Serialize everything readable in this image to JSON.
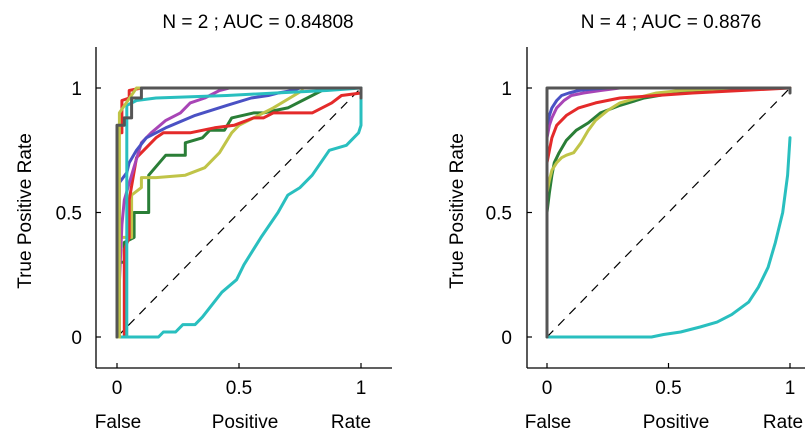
{
  "chart_data": [
    {
      "type": "line",
      "title": "N = 2 ; AUC = 0.84808",
      "xlabel_words": [
        "False",
        "Positive",
        "Rate"
      ],
      "ylabel": "True Positive Rate",
      "xlim": [
        0,
        1
      ],
      "ylim": [
        0,
        1
      ],
      "xticks": [
        "0",
        "0.5",
        "1"
      ],
      "yticks": [
        "0",
        "0.5",
        "1"
      ],
      "grid": false,
      "diagonal_reference": true,
      "series": [
        {
          "color": "#29bfbf",
          "x": [
            0,
            0.17,
            0.19,
            0.24,
            0.27,
            0.32,
            0.35,
            0.43,
            0.49,
            0.52,
            0.59,
            0.66,
            0.7,
            0.75,
            0.8,
            0.87,
            0.94,
            0.97,
            0.99,
            1,
            1
          ],
          "y": [
            0,
            0,
            0.02,
            0.02,
            0.05,
            0.05,
            0.08,
            0.18,
            0.23,
            0.29,
            0.4,
            0.5,
            0.57,
            0.6,
            0.65,
            0.75,
            0.77,
            0.8,
            0.82,
            0.85,
            1
          ]
        },
        {
          "color": "#2a7e37",
          "x": [
            0,
            0.01,
            0.01,
            0.03,
            0.03,
            0.07,
            0.07,
            0.13,
            0.13,
            0.2,
            0.28,
            0.28,
            0.35,
            0.38,
            0.44,
            0.47,
            0.56,
            0.6,
            0.7,
            0.8,
            0.86,
            1
          ],
          "y": [
            0,
            0,
            0.3,
            0.3,
            0.38,
            0.4,
            0.5,
            0.5,
            0.65,
            0.73,
            0.73,
            0.78,
            0.8,
            0.83,
            0.83,
            0.88,
            0.9,
            0.9,
            0.92,
            0.97,
            1,
            1
          ]
        },
        {
          "color": "#c0c448",
          "x": [
            0,
            0.01,
            0.01,
            0.06,
            0.06,
            0.1,
            0.1,
            0.16,
            0.28,
            0.36,
            0.42,
            0.47,
            0.5,
            0.58,
            0.64,
            0.76
          ],
          "y": [
            0,
            0,
            0.4,
            0.4,
            0.57,
            0.6,
            0.64,
            0.64,
            0.65,
            0.68,
            0.74,
            0.82,
            0.85,
            0.89,
            0.92,
            0.99
          ]
        },
        {
          "color": "#e42a2a",
          "x": [
            0,
            0.03,
            0.03,
            0.05,
            0.05,
            0.08,
            0.16,
            0.19,
            0.3,
            0.4,
            0.48,
            0.56,
            0.6,
            0.64,
            0.8,
            0.88,
            0.92,
            1
          ],
          "y": [
            0,
            0,
            0.35,
            0.4,
            0.55,
            0.72,
            0.8,
            0.82,
            0.82,
            0.84,
            0.85,
            0.88,
            0.88,
            0.9,
            0.9,
            0.94,
            0.97,
            0.98
          ]
        },
        {
          "color": "#a845b6",
          "x": [
            0,
            0.02,
            0.03,
            0.06,
            0.1,
            0.14,
            0.2,
            0.26,
            0.3,
            0.36,
            0.4,
            0.42,
            0.46
          ],
          "y": [
            0,
            0.45,
            0.55,
            0.65,
            0.78,
            0.82,
            0.87,
            0.9,
            0.94,
            0.96,
            0.98,
            0.99,
            1
          ]
        },
        {
          "color": "#4a51c4",
          "x": [
            0,
            0.01,
            0.01,
            0.04,
            0.05,
            0.08,
            0.12,
            0.2,
            0.32,
            0.45,
            0.55,
            0.62,
            0.66,
            0.72,
            0.75
          ],
          "y": [
            0,
            0,
            0.62,
            0.66,
            0.7,
            0.75,
            0.8,
            0.84,
            0.89,
            0.93,
            0.96,
            0.97,
            0.98,
            0.99,
            1
          ]
        },
        {
          "color": "#e42a2a",
          "x": [
            0,
            0,
            0.02,
            0.02,
            0.05,
            0.05,
            0.1,
            0.14,
            0.4,
            1
          ],
          "y": [
            0,
            0.82,
            0.82,
            0.95,
            0.96,
            0.99,
            1,
            1,
            1,
            1
          ]
        },
        {
          "color": "#29bfbf",
          "x": [
            0,
            0.04,
            0.04,
            0.08,
            0.16,
            0.45,
            0.65,
            0.86,
            1
          ],
          "y": [
            0,
            0,
            0.93,
            0.95,
            0.96,
            0.97,
            0.98,
            0.99,
            1
          ]
        },
        {
          "color": "#c0c448",
          "x": [
            0,
            0.01,
            0.01,
            0.08,
            0.13,
            0.3
          ],
          "y": [
            0,
            0,
            0.9,
            1,
            1,
            1
          ]
        },
        {
          "color": "#555555",
          "x": [
            0,
            0,
            0.03,
            0.03,
            0.06,
            0.06,
            0.1,
            0.1,
            1,
            1
          ],
          "y": [
            0,
            0.85,
            0.85,
            0.88,
            0.88,
            0.96,
            0.96,
            1,
            1,
            0.96
          ]
        }
      ]
    },
    {
      "type": "line",
      "title": "N = 4 ; AUC = 0.8876",
      "xlabel_words": [
        "False",
        "Positive",
        "Rate"
      ],
      "ylabel": "True Positive Rate",
      "xlim": [
        0,
        1
      ],
      "ylim": [
        0,
        1
      ],
      "xticks": [
        "0",
        "0.5",
        "1"
      ],
      "yticks": [
        "0",
        "0.5",
        "1"
      ],
      "grid": false,
      "diagonal_reference": true,
      "series": [
        {
          "color": "#29bfbf",
          "x": [
            0,
            0.43,
            0.48,
            0.55,
            0.63,
            0.7,
            0.76,
            0.83,
            0.87,
            0.91,
            0.94,
            0.97,
            0.99,
            1
          ],
          "y": [
            0,
            0,
            0.01,
            0.02,
            0.04,
            0.06,
            0.09,
            0.14,
            0.2,
            0.28,
            0.38,
            0.5,
            0.65,
            0.8
          ]
        },
        {
          "color": "#2a7e37",
          "x": [
            0,
            0.01,
            0.02,
            0.03,
            0.05,
            0.08,
            0.12,
            0.17,
            0.22,
            0.3,
            0.4,
            0.52,
            0.65,
            0.8,
            1
          ],
          "y": [
            0.5,
            0.58,
            0.65,
            0.7,
            0.74,
            0.79,
            0.83,
            0.86,
            0.9,
            0.93,
            0.96,
            0.98,
            0.99,
            1,
            1
          ]
        },
        {
          "color": "#c0c448",
          "x": [
            0,
            0.01,
            0.02,
            0.04,
            0.06,
            0.08,
            0.11,
            0.14,
            0.17,
            0.2,
            0.25,
            0.3,
            0.37,
            0.45,
            0.55,
            0.65,
            0.8,
            1
          ],
          "y": [
            0.58,
            0.63,
            0.67,
            0.7,
            0.72,
            0.73,
            0.74,
            0.78,
            0.83,
            0.87,
            0.91,
            0.94,
            0.96,
            0.98,
            0.99,
            0.995,
            1,
            1
          ]
        },
        {
          "color": "#e42a2a",
          "x": [
            0,
            0.01,
            0.02,
            0.04,
            0.08,
            0.13,
            0.2,
            0.3,
            0.45,
            0.6,
            0.8,
            1
          ],
          "y": [
            0.7,
            0.75,
            0.8,
            0.85,
            0.89,
            0.92,
            0.94,
            0.96,
            0.97,
            0.98,
            0.99,
            1
          ]
        },
        {
          "color": "#a845b6",
          "x": [
            0,
            0.01,
            0.02,
            0.04,
            0.07,
            0.1,
            0.15,
            0.22,
            0.3
          ],
          "y": [
            0.8,
            0.85,
            0.88,
            0.92,
            0.95,
            0.97,
            0.98,
            0.99,
            1
          ]
        },
        {
          "color": "#4a51c4",
          "x": [
            0,
            0.01,
            0.02,
            0.04,
            0.06,
            0.09,
            0.13,
            0.18,
            0.25
          ],
          "y": [
            0.85,
            0.89,
            0.92,
            0.95,
            0.97,
            0.98,
            0.99,
            0.995,
            1
          ]
        },
        {
          "color": "#555555",
          "x": [
            0,
            0,
            1,
            1
          ],
          "y": [
            0,
            1,
            1,
            0.98
          ]
        }
      ]
    }
  ]
}
